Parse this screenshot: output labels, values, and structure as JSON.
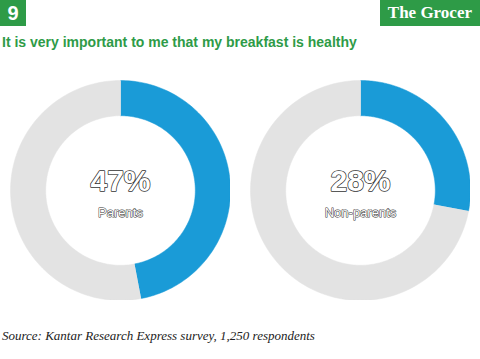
{
  "header": {
    "issue": "9",
    "logo": "The Grocer",
    "title": "It is very important to me that my breakfast is healthy",
    "source": "Source: Kantar Research Express survey, 1,250 respondents"
  },
  "chart_data": [
    {
      "type": "pie",
      "categories": [
        "Parents",
        null
      ],
      "values": [
        47,
        53
      ],
      "value_labels": [
        "47%",
        null
      ],
      "colors": [
        "#1a9bd7",
        "#e3e3e3"
      ]
    },
    {
      "type": "pie",
      "categories": [
        "Non-parents",
        null
      ],
      "values": [
        28,
        72
      ],
      "value_labels": [
        "28%",
        null
      ],
      "colors": [
        "#1a9bd7",
        "#e3e3e3"
      ]
    }
  ]
}
